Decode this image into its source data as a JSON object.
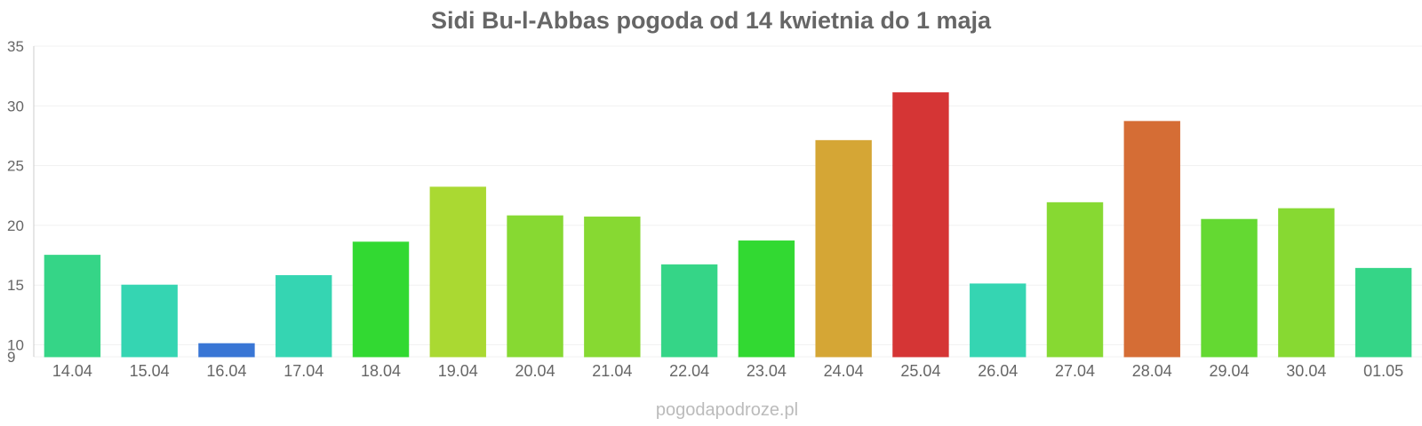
{
  "chart_data": {
    "type": "bar",
    "title": "Sidi Bu-l-Abbas pogoda od 14 kwietnia do 1 maja",
    "xlabel": "",
    "ylabel": "",
    "ylim": [
      9,
      35
    ],
    "y_ticks": [
      9,
      10,
      15,
      20,
      25,
      30,
      35
    ],
    "grid": true,
    "categories": [
      "14.04",
      "15.04",
      "16.04",
      "17.04",
      "18.04",
      "19.04",
      "20.04",
      "21.04",
      "22.04",
      "23.04",
      "24.04",
      "25.04",
      "26.04",
      "27.04",
      "28.04",
      "29.04",
      "30.04",
      "01.05"
    ],
    "values": [
      17.5,
      15.0,
      10.1,
      15.8,
      18.6,
      23.2,
      20.8,
      20.7,
      16.7,
      18.7,
      27.1,
      31.1,
      15.1,
      21.9,
      28.7,
      20.5,
      21.4,
      16.4
    ],
    "colors": [
      "#36d98a",
      "#36d9b6",
      "#3a78d9",
      "#36d9b6",
      "#33dd33",
      "#addd33",
      "#8add33",
      "#8add33",
      "#36d98a",
      "#33dd33",
      "#d9a936",
      "#d93636",
      "#36d9b6",
      "#8add33",
      "#d96f36",
      "#66dd33",
      "#8add33",
      "#36d98a"
    ]
  },
  "watermark": "pogodapodroze.pl"
}
